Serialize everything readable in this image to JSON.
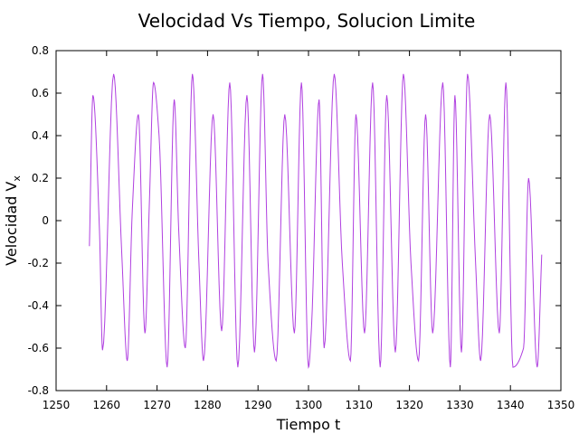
{
  "chart_data": {
    "type": "line",
    "title": "Velocidad Vs Tiempo, Solucion Limite",
    "xlabel": "Tiempo t",
    "ylabel": "Velocidad V",
    "ylabel_subscript": "x",
    "xlim": [
      1250,
      1350
    ],
    "ylim": [
      -0.8,
      0.8
    ],
    "xticks": [
      1250,
      1260,
      1270,
      1280,
      1290,
      1300,
      1310,
      1320,
      1330,
      1340,
      1350
    ],
    "yticks": [
      -0.8,
      -0.6,
      -0.4,
      -0.2,
      0,
      0.2,
      0.4,
      0.6,
      0.8
    ],
    "xtick_labels": [
      "1250",
      "1260",
      "1270",
      "1280",
      "1290",
      "1300",
      "1310",
      "1320",
      "1330",
      "1340",
      "1350"
    ],
    "ytick_labels": [
      "-0.8",
      "-0.6",
      "-0.4",
      "-0.2",
      "0",
      "0.2",
      "0.4",
      "0.6",
      "0.8"
    ],
    "grid": false,
    "legend": "none",
    "series": [
      {
        "color": "#b040e0",
        "x": [
          1256.6,
          1257.3,
          1258.6,
          1259.2,
          1261.4,
          1263.0,
          1264.1,
          1265.1,
          1266.3,
          1267.6,
          1268.5,
          1269.3,
          1270.4,
          1272.0,
          1273.4,
          1274.3,
          1275.6,
          1277.0,
          1278.3,
          1279.2,
          1281.1,
          1282.8,
          1284.4,
          1286.0,
          1287.8,
          1289.3,
          1290.9,
          1292.0,
          1293.6,
          1295.3,
          1297.2,
          1298.6,
          1300.0,
          1300.6,
          1302.1,
          1303.1,
          1305.1,
          1306.7,
          1308.3,
          1309.4,
          1311.1,
          1312.7,
          1314.2,
          1315.5,
          1317.2,
          1318.8,
          1320.3,
          1321.8,
          1323.2,
          1324.6,
          1326.6,
          1328.1,
          1329.0,
          1330.3,
          1331.5,
          1333.1,
          1334.1,
          1335.9,
          1337.8,
          1339.1,
          1340.5,
          1342.6,
          1343.6,
          1345.3,
          1346.2
        ],
        "y": [
          -0.12,
          0.59,
          -0.05,
          -0.61,
          0.69,
          -0.15,
          -0.66,
          0.05,
          0.5,
          -0.53,
          0.1,
          0.65,
          0.4,
          -0.69,
          0.57,
          -0.05,
          -0.6,
          0.69,
          -0.2,
          -0.66,
          0.5,
          -0.52,
          0.65,
          -0.69,
          0.59,
          -0.62,
          0.69,
          -0.2,
          -0.66,
          0.5,
          -0.53,
          0.65,
          -0.69,
          -0.5,
          0.57,
          -0.6,
          0.69,
          -0.2,
          -0.66,
          0.5,
          -0.53,
          0.65,
          -0.69,
          0.59,
          -0.62,
          0.69,
          -0.2,
          -0.66,
          0.5,
          -0.53,
          0.65,
          -0.69,
          0.59,
          -0.62,
          0.69,
          -0.2,
          -0.66,
          0.5,
          -0.53,
          0.65,
          -0.69,
          -0.6,
          0.2,
          -0.69,
          -0.16
        ]
      }
    ]
  }
}
